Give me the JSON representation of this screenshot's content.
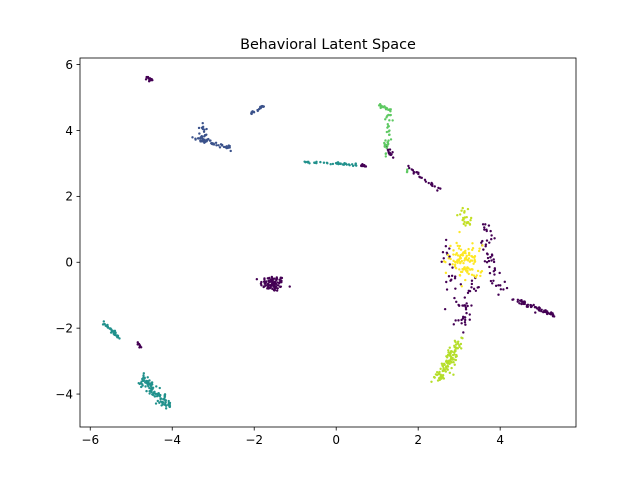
{
  "chart_data": {
    "type": "scatter",
    "title": "Behavioral Latent Space",
    "xlabel": "",
    "ylabel": "",
    "xlim": [
      -6.25,
      5.85
    ],
    "ylim": [
      -5.0,
      6.2
    ],
    "x_ticks": [
      "−6",
      "−4",
      "−2",
      "0",
      "2",
      "4"
    ],
    "y_ticks": [
      "−4",
      "−2",
      "0",
      "2",
      "4",
      "6"
    ],
    "x_tick_values": [
      -6,
      -4,
      -2,
      0,
      2,
      4
    ],
    "y_tick_values": [
      -4,
      -2,
      0,
      2,
      4,
      6
    ],
    "grid": false,
    "colormap": "viridis",
    "clusters": [
      {
        "color": "#440154",
        "shape": "blob",
        "center": [
          -1.55,
          -0.65
        ],
        "spread": [
          0.15,
          0.12
        ],
        "n": 90
      },
      {
        "color": "#440154",
        "shape": "segment",
        "from": [
          -4.65,
          5.65
        ],
        "to": [
          -4.5,
          5.5
        ],
        "n": 12,
        "jitter": 0.02
      },
      {
        "color": "#440154",
        "shape": "segment",
        "from": [
          1.75,
          2.9
        ],
        "to": [
          2.5,
          2.2
        ],
        "n": 25,
        "jitter": 0.03
      },
      {
        "color": "#440154",
        "shape": "segment",
        "from": [
          4.3,
          -1.1
        ],
        "to": [
          5.3,
          -1.6
        ],
        "n": 60,
        "jitter": 0.03
      },
      {
        "color": "#440154",
        "shape": "segment",
        "from": [
          3.6,
          1.15
        ],
        "to": [
          4.0,
          -1.0
        ],
        "n": 50,
        "jitter": 0.08
      },
      {
        "color": "#440154",
        "shape": "segment",
        "from": [
          3.4,
          -0.5
        ],
        "to": [
          3.0,
          -2.0
        ],
        "n": 40,
        "jitter": 0.08
      },
      {
        "color": "#440154",
        "shape": "segment",
        "from": [
          0.6,
          2.95
        ],
        "to": [
          0.7,
          2.9
        ],
        "n": 10,
        "jitter": 0.02
      },
      {
        "color": "#440154",
        "shape": "segment",
        "from": [
          1.25,
          3.45
        ],
        "to": [
          1.35,
          3.2
        ],
        "n": 14,
        "jitter": 0.03
      },
      {
        "color": "#440154",
        "shape": "segment",
        "from": [
          -4.85,
          -2.45
        ],
        "to": [
          -4.75,
          -2.6
        ],
        "n": 8,
        "jitter": 0.02
      },
      {
        "color": "#440154",
        "shape": "segment",
        "from": [
          2.75,
          0.7
        ],
        "to": [
          2.8,
          -1.2
        ],
        "n": 25,
        "jitter": 0.1
      },
      {
        "color": "#3b528b",
        "shape": "segment",
        "from": [
          -2.1,
          4.5
        ],
        "to": [
          -1.75,
          4.75
        ],
        "n": 20,
        "jitter": 0.02
      },
      {
        "color": "#3b528b",
        "shape": "segment",
        "from": [
          -3.55,
          3.8
        ],
        "to": [
          -2.55,
          3.45
        ],
        "n": 50,
        "jitter": 0.04
      },
      {
        "color": "#3b528b",
        "shape": "segment",
        "from": [
          -3.3,
          4.2
        ],
        "to": [
          -3.15,
          3.7
        ],
        "n": 20,
        "jitter": 0.05
      },
      {
        "color": "#21918c",
        "shape": "segment",
        "from": [
          -5.7,
          -1.8
        ],
        "to": [
          -5.3,
          -2.3
        ],
        "n": 40,
        "jitter": 0.02
      },
      {
        "color": "#21918c",
        "shape": "segment",
        "from": [
          -4.7,
          -3.5
        ],
        "to": [
          -4.1,
          -4.45
        ],
        "n": 110,
        "jitter": 0.07
      },
      {
        "color": "#21918c",
        "shape": "segment",
        "from": [
          -0.8,
          3.05
        ],
        "to": [
          0.6,
          2.95
        ],
        "n": 40,
        "jitter": 0.02
      },
      {
        "color": "#5ec962",
        "shape": "segment",
        "from": [
          1.0,
          4.8
        ],
        "to": [
          1.35,
          4.6
        ],
        "n": 20,
        "jitter": 0.02
      },
      {
        "color": "#5ec962",
        "shape": "segment",
        "from": [
          1.3,
          4.55
        ],
        "to": [
          1.2,
          3.2
        ],
        "n": 35,
        "jitter": 0.04
      },
      {
        "color": "#5ec962",
        "shape": "segment",
        "from": [
          1.7,
          2.8
        ],
        "to": [
          1.75,
          2.7
        ],
        "n": 3,
        "jitter": 0.02
      },
      {
        "color": "#b5de2b",
        "shape": "segment",
        "from": [
          3.0,
          -2.4
        ],
        "to": [
          2.5,
          -3.6
        ],
        "n": 110,
        "jitter": 0.08
      },
      {
        "color": "#c2df23",
        "shape": "segment",
        "from": [
          3.1,
          1.6
        ],
        "to": [
          3.2,
          1.15
        ],
        "n": 25,
        "jitter": 0.06
      },
      {
        "color": "#fde725",
        "shape": "blob",
        "center": [
          3.15,
          0.05
        ],
        "spread": [
          0.22,
          0.28
        ],
        "n": 110
      }
    ]
  }
}
